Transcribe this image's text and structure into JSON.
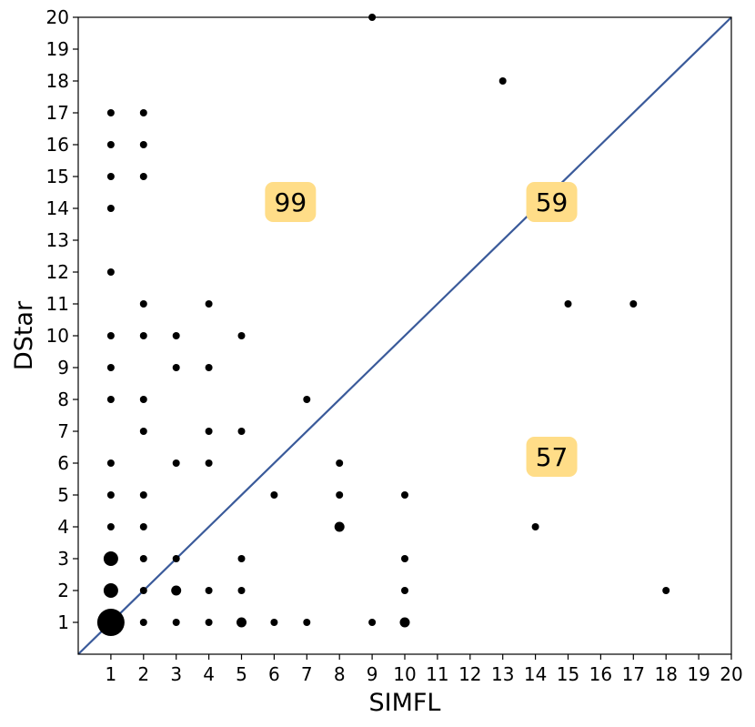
{
  "chart_data": {
    "type": "scatter",
    "title": "",
    "xlabel": "SIMFL",
    "ylabel": "DStar",
    "xlim": [
      0,
      20
    ],
    "ylim": [
      0,
      20
    ],
    "xticks": [
      "1",
      "2",
      "3",
      "4",
      "5",
      "6",
      "7",
      "8",
      "9",
      "10",
      "11",
      "12",
      "13",
      "14",
      "15",
      "16",
      "17",
      "18",
      "19",
      "20"
    ],
    "yticks": [
      "1",
      "2",
      "3",
      "4",
      "5",
      "6",
      "7",
      "8",
      "9",
      "10",
      "11",
      "12",
      "13",
      "14",
      "15",
      "16",
      "17",
      "18",
      "19",
      "20"
    ],
    "grid": false,
    "diagonal_line": {
      "from": [
        0,
        0
      ],
      "to": [
        20,
        20
      ],
      "color": "#3a5a9a"
    },
    "point_color": "#000000",
    "points": [
      {
        "x": 1,
        "y": 1,
        "size": "xlarge"
      },
      {
        "x": 1,
        "y": 2,
        "size": "large"
      },
      {
        "x": 1,
        "y": 3,
        "size": "large"
      },
      {
        "x": 1,
        "y": 4,
        "size": "small"
      },
      {
        "x": 1,
        "y": 5,
        "size": "small"
      },
      {
        "x": 1,
        "y": 6,
        "size": "small"
      },
      {
        "x": 1,
        "y": 8,
        "size": "small"
      },
      {
        "x": 1,
        "y": 9,
        "size": "small"
      },
      {
        "x": 1,
        "y": 10,
        "size": "small"
      },
      {
        "x": 1,
        "y": 12,
        "size": "small"
      },
      {
        "x": 1,
        "y": 14,
        "size": "small"
      },
      {
        "x": 1,
        "y": 15,
        "size": "small"
      },
      {
        "x": 1,
        "y": 16,
        "size": "small"
      },
      {
        "x": 1,
        "y": 17,
        "size": "small"
      },
      {
        "x": 2,
        "y": 1,
        "size": "small"
      },
      {
        "x": 2,
        "y": 2,
        "size": "small"
      },
      {
        "x": 2,
        "y": 3,
        "size": "small"
      },
      {
        "x": 2,
        "y": 4,
        "size": "small"
      },
      {
        "x": 2,
        "y": 5,
        "size": "small"
      },
      {
        "x": 2,
        "y": 7,
        "size": "small"
      },
      {
        "x": 2,
        "y": 8,
        "size": "small"
      },
      {
        "x": 2,
        "y": 10,
        "size": "small"
      },
      {
        "x": 2,
        "y": 11,
        "size": "small"
      },
      {
        "x": 2,
        "y": 15,
        "size": "small"
      },
      {
        "x": 2,
        "y": 16,
        "size": "small"
      },
      {
        "x": 2,
        "y": 17,
        "size": "small"
      },
      {
        "x": 3,
        "y": 1,
        "size": "small"
      },
      {
        "x": 3,
        "y": 2,
        "size": "medium"
      },
      {
        "x": 3,
        "y": 3,
        "size": "small"
      },
      {
        "x": 3,
        "y": 6,
        "size": "small"
      },
      {
        "x": 3,
        "y": 9,
        "size": "small"
      },
      {
        "x": 3,
        "y": 10,
        "size": "small"
      },
      {
        "x": 4,
        "y": 1,
        "size": "small"
      },
      {
        "x": 4,
        "y": 2,
        "size": "small"
      },
      {
        "x": 4,
        "y": 6,
        "size": "small"
      },
      {
        "x": 4,
        "y": 7,
        "size": "small"
      },
      {
        "x": 4,
        "y": 9,
        "size": "small"
      },
      {
        "x": 4,
        "y": 11,
        "size": "small"
      },
      {
        "x": 5,
        "y": 1,
        "size": "medium"
      },
      {
        "x": 5,
        "y": 2,
        "size": "small"
      },
      {
        "x": 5,
        "y": 3,
        "size": "small"
      },
      {
        "x": 5,
        "y": 7,
        "size": "small"
      },
      {
        "x": 5,
        "y": 10,
        "size": "small"
      },
      {
        "x": 6,
        "y": 1,
        "size": "small"
      },
      {
        "x": 6,
        "y": 5,
        "size": "small"
      },
      {
        "x": 7,
        "y": 1,
        "size": "small"
      },
      {
        "x": 7,
        "y": 8,
        "size": "small"
      },
      {
        "x": 8,
        "y": 4,
        "size": "medium"
      },
      {
        "x": 8,
        "y": 5,
        "size": "small"
      },
      {
        "x": 8,
        "y": 6,
        "size": "small"
      },
      {
        "x": 9,
        "y": 1,
        "size": "small"
      },
      {
        "x": 9,
        "y": 20,
        "size": "small"
      },
      {
        "x": 10,
        "y": 1,
        "size": "medium"
      },
      {
        "x": 10,
        "y": 2,
        "size": "small"
      },
      {
        "x": 10,
        "y": 3,
        "size": "small"
      },
      {
        "x": 10,
        "y": 5,
        "size": "small"
      },
      {
        "x": 13,
        "y": 18,
        "size": "small"
      },
      {
        "x": 14,
        "y": 4,
        "size": "small"
      },
      {
        "x": 15,
        "y": 11,
        "size": "small"
      },
      {
        "x": 17,
        "y": 11,
        "size": "small"
      },
      {
        "x": 18,
        "y": 2,
        "size": "small"
      }
    ],
    "annotations": [
      {
        "text": "99",
        "x": 6.5,
        "y": 14.2,
        "bg_color": "#ffdd88"
      },
      {
        "text": "59",
        "x": 14.5,
        "y": 14.2,
        "bg_color": "#ffdd88"
      },
      {
        "text": "57",
        "x": 14.5,
        "y": 6.2,
        "bg_color": "#ffdd88"
      }
    ]
  }
}
